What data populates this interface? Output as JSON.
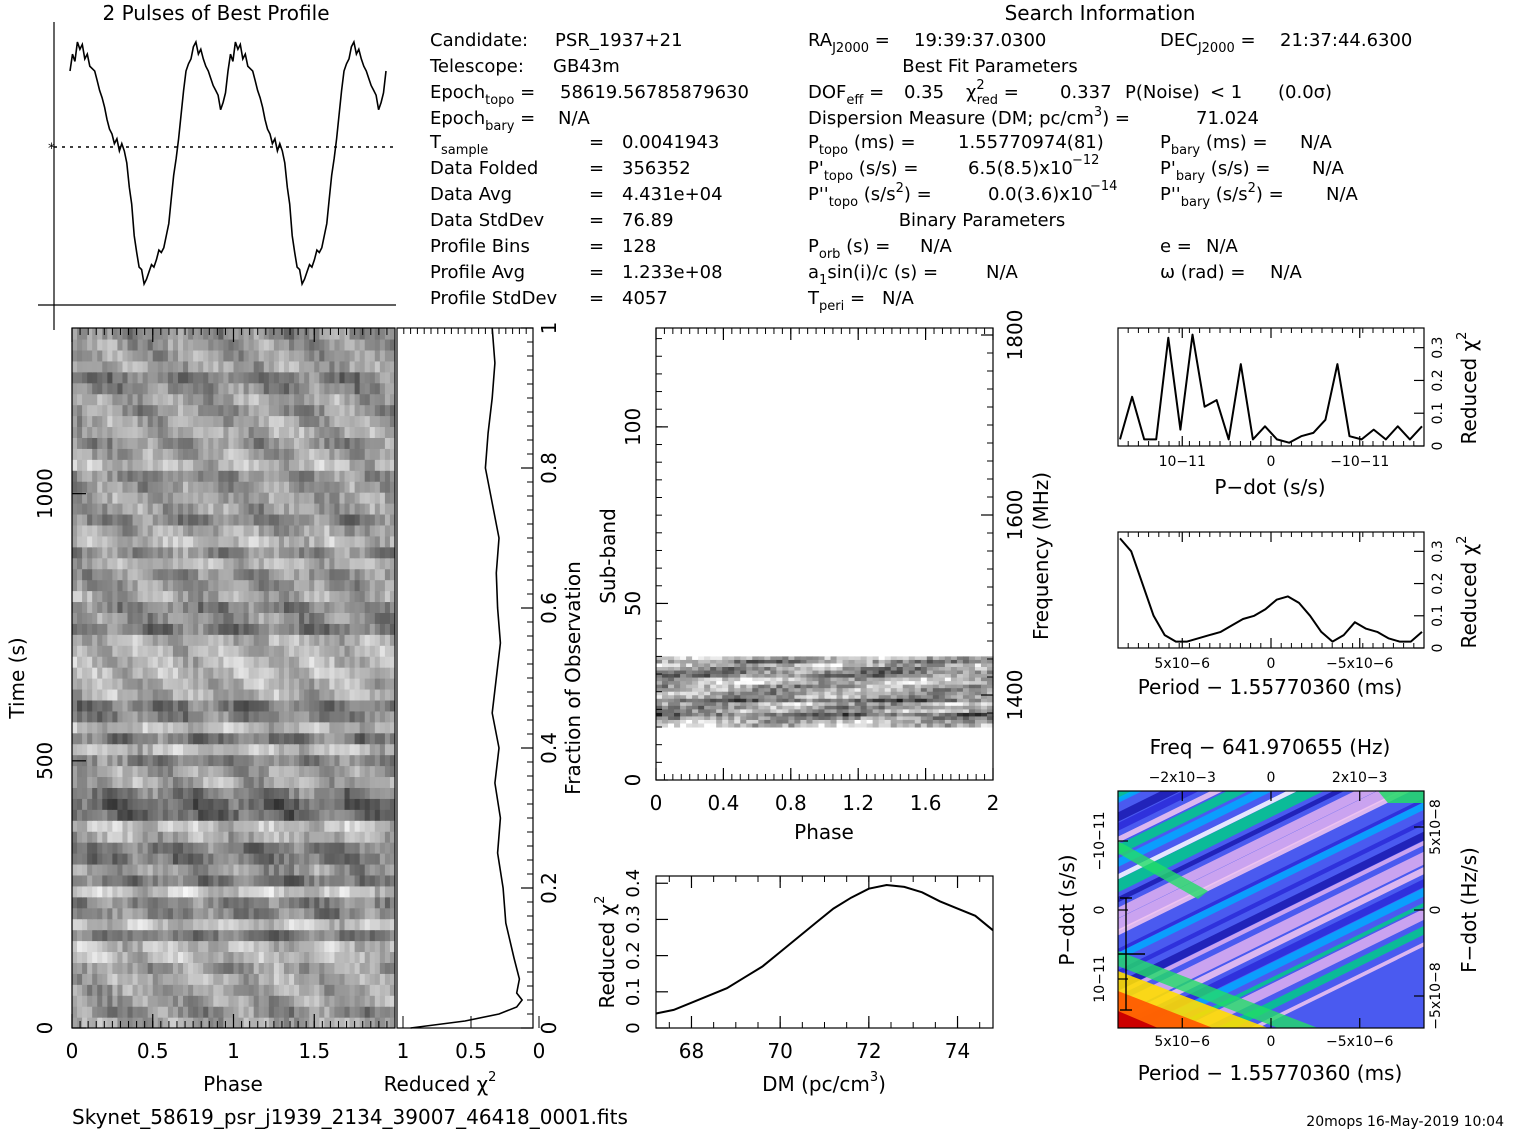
{
  "footer": {
    "filename": "Skynet_58619_psr_j1939_2134_39007_46418_0001.fits",
    "stamp": "20mops 16-May-2019 10:04"
  },
  "info": {
    "search_title": "Search Information",
    "best_fit_title": "Best Fit Parameters",
    "binary_title": "Binary Parameters",
    "candidate": "PSR_1937+21",
    "telescope": "GB43m",
    "epoch_topo": "58619.56785879630",
    "epoch_bary": "N/A",
    "t_sample": "0.0041943",
    "data_folded": "356352",
    "data_avg": "4.431e+04",
    "data_stddev": "76.89",
    "profile_bins": "128",
    "profile_avg": "1.233e+08",
    "profile_stddev": "4057",
    "ra": "19:39:37.0300",
    "dec": "21:37:44.6300",
    "dof_eff": "0.35",
    "chi2_red": "0.337",
    "p_noise": "< 1",
    "sigma": "(0.0σ)",
    "dm": "71.024",
    "p_topo": "1.55770974(81)",
    "pdot_topo": "6.5(8.5)x10",
    "pdot_topo_exp": "−12",
    "pddot_topo": "0.0(3.6)x10",
    "pddot_topo_exp": "−14",
    "p_bary": "N/A",
    "pdot_bary": "N/A",
    "pddot_bary": "N/A",
    "p_orb": "N/A",
    "a1sini": "N/A",
    "t_peri": "N/A",
    "e": "N/A",
    "omega": "N/A"
  },
  "chart_data": [
    {
      "id": "profile",
      "type": "line",
      "title": "2 Pulses of Best Profile",
      "xlim": [
        0,
        2
      ],
      "x": [
        0.0,
        0.0156,
        0.0313,
        0.0469,
        0.0625,
        0.0781,
        0.0938,
        0.1094,
        0.125,
        0.1406,
        0.1563,
        0.1719,
        0.1875,
        0.2031,
        0.2188,
        0.2344,
        0.25,
        0.2656,
        0.2813,
        0.2969,
        0.3125,
        0.3281,
        0.3438,
        0.3594,
        0.375,
        0.3906,
        0.4063,
        0.4219,
        0.4375,
        0.4531,
        0.4688,
        0.4844,
        0.5,
        0.5156,
        0.5313,
        0.5469,
        0.5625,
        0.5781,
        0.5938,
        0.6094,
        0.625,
        0.6406,
        0.6563,
        0.6719,
        0.6875,
        0.7031,
        0.7188,
        0.7344,
        0.75,
        0.7656,
        0.7813,
        0.7969,
        0.8125,
        0.8281,
        0.8438,
        0.8594,
        0.875,
        0.8906,
        0.9063,
        0.9219,
        0.9375,
        0.9531,
        0.9688,
        0.9844,
        1.0
      ],
      "values": [
        0.88,
        0.95,
        0.92,
        1.0,
        0.97,
        0.99,
        0.93,
        0.95,
        0.9,
        0.89,
        0.88,
        0.84,
        0.8,
        0.77,
        0.73,
        0.68,
        0.64,
        0.62,
        0.58,
        0.6,
        0.55,
        0.58,
        0.55,
        0.5,
        0.4,
        0.33,
        0.2,
        0.13,
        0.07,
        0.06,
        0.0,
        0.02,
        0.05,
        0.08,
        0.07,
        0.1,
        0.14,
        0.13,
        0.15,
        0.2,
        0.25,
        0.35,
        0.45,
        0.52,
        0.6,
        0.7,
        0.8,
        0.88,
        0.91,
        0.93,
        0.98,
        1.0,
        0.95,
        0.97,
        0.93,
        0.9,
        0.88,
        0.85,
        0.82,
        0.8,
        0.78,
        0.72,
        0.75,
        0.79,
        0.88
      ],
      "mean_line": 0.58
    },
    {
      "id": "time_phase",
      "type": "heatmap",
      "xlabel": "Phase",
      "ylabel": "Time (s)",
      "x_ticks": [
        "0",
        "0.5",
        "1",
        "1.5"
      ],
      "y_ticks": [
        "0",
        "500",
        "1000"
      ],
      "xlim": [
        0,
        2
      ],
      "ylim": [
        0,
        1310
      ],
      "rows": 64,
      "phase_bins": 64
    },
    {
      "id": "time_chi2",
      "type": "line",
      "xlabel": "Reduced χ",
      "xlabel_sup": "2",
      "ylabel": "Fraction of Observation",
      "x_ticks": [
        "1",
        "0.5",
        "0"
      ],
      "y_ticks": [
        "0",
        "0.2",
        "0.4",
        "0.6",
        "0.8",
        "1"
      ],
      "xlim": [
        1,
        0
      ],
      "y": [
        0.0,
        0.01,
        0.02,
        0.03,
        0.04,
        0.05,
        0.07,
        0.1,
        0.15,
        0.2,
        0.25,
        0.3,
        0.35,
        0.4,
        0.45,
        0.5,
        0.55,
        0.6,
        0.65,
        0.7,
        0.75,
        0.8,
        0.85,
        0.9,
        0.95,
        1.0
      ],
      "values": [
        0.9,
        0.5,
        0.25,
        0.12,
        0.08,
        0.12,
        0.1,
        0.14,
        0.2,
        0.22,
        0.26,
        0.24,
        0.28,
        0.25,
        0.3,
        0.27,
        0.24,
        0.26,
        0.27,
        0.25,
        0.3,
        0.35,
        0.33,
        0.3,
        0.28,
        0.3
      ]
    },
    {
      "id": "subband_phase",
      "type": "heatmap",
      "xlabel": "Phase",
      "ylabel": "Sub-band",
      "y2label": "Frequency (MHz)",
      "x_ticks": [
        "0",
        "0.4",
        "0.8",
        "1.2",
        "1.6",
        "2"
      ],
      "y_ticks": [
        "0",
        "50",
        "100"
      ],
      "y2_ticks": [
        "1400",
        "1600",
        "1800"
      ],
      "xlim": [
        0,
        2
      ],
      "ylim": [
        0,
        128
      ],
      "band_range": [
        15,
        35
      ]
    },
    {
      "id": "dm_curve",
      "type": "line",
      "xlabel": "DM (pc/cm",
      "xlabel_sup": "3",
      "xlabel_end": ")",
      "ylabel": "Reduced χ",
      "ylabel_sup": "2",
      "x_ticks": [
        "68",
        "70",
        "72",
        "74"
      ],
      "y_ticks": [
        "0",
        "0.1",
        "0.2",
        "0.3",
        "0.4"
      ],
      "xlim": [
        67.2,
        74.8
      ],
      "ylim": [
        0,
        0.42
      ],
      "x": [
        67.2,
        67.6,
        68.0,
        68.4,
        68.8,
        69.2,
        69.6,
        70.0,
        70.4,
        70.8,
        71.2,
        71.6,
        72.0,
        72.4,
        72.8,
        73.2,
        73.6,
        74.0,
        74.4,
        74.8
      ],
      "values": [
        0.04,
        0.05,
        0.07,
        0.09,
        0.11,
        0.14,
        0.17,
        0.21,
        0.25,
        0.29,
        0.33,
        0.36,
        0.385,
        0.395,
        0.39,
        0.375,
        0.35,
        0.33,
        0.31,
        0.27
      ]
    },
    {
      "id": "pdot_curve",
      "type": "line",
      "xlabel": "P−dot (s/s)",
      "ylabel": "Reduced χ",
      "ylabel_sup": "2",
      "x_ticks": [
        "10−11",
        "0",
        "−10−11"
      ],
      "y_ticks": [
        "0",
        "0.1",
        "0.2",
        "0.3"
      ],
      "values": [
        0.02,
        0.15,
        0.02,
        0.02,
        0.33,
        0.05,
        0.34,
        0.12,
        0.14,
        0.02,
        0.25,
        0.02,
        0.06,
        0.02,
        0.01,
        0.03,
        0.04,
        0.08,
        0.25,
        0.03,
        0.02,
        0.05,
        0.02,
        0.06,
        0.02,
        0.06
      ]
    },
    {
      "id": "period_curve",
      "type": "line",
      "xlabel": "Period − 1.55770360 (ms)",
      "ylabel": "Reduced χ",
      "ylabel_sup": "2",
      "x_ticks": [
        "5x10−6",
        "0",
        "−5x10−6"
      ],
      "y_ticks": [
        "0",
        "0.1",
        "0.2",
        "0.3"
      ],
      "values": [
        0.34,
        0.3,
        0.2,
        0.1,
        0.04,
        0.02,
        0.02,
        0.03,
        0.04,
        0.05,
        0.07,
        0.09,
        0.1,
        0.12,
        0.15,
        0.16,
        0.14,
        0.1,
        0.05,
        0.02,
        0.04,
        0.08,
        0.06,
        0.05,
        0.03,
        0.02,
        0.02,
        0.05
      ]
    },
    {
      "id": "p_pdot_plane",
      "type": "heatmap",
      "title": "Freq − 641.970655 (Hz)",
      "xlabel": "Period − 1.55770360 (ms)",
      "ylabel": "P−dot (s/s)",
      "y2label": "F−dot (Hz/s)",
      "top_ticks": [
        "−2x10−3",
        "0",
        "2x10−3"
      ],
      "x_ticks": [
        "5x10−6",
        "0",
        "−5x10−6"
      ],
      "y_ticks": [
        "−10−11",
        "0",
        "10−11"
      ],
      "y2_ticks": [
        "5x10−8",
        "0",
        "−5x10−8"
      ]
    }
  ]
}
